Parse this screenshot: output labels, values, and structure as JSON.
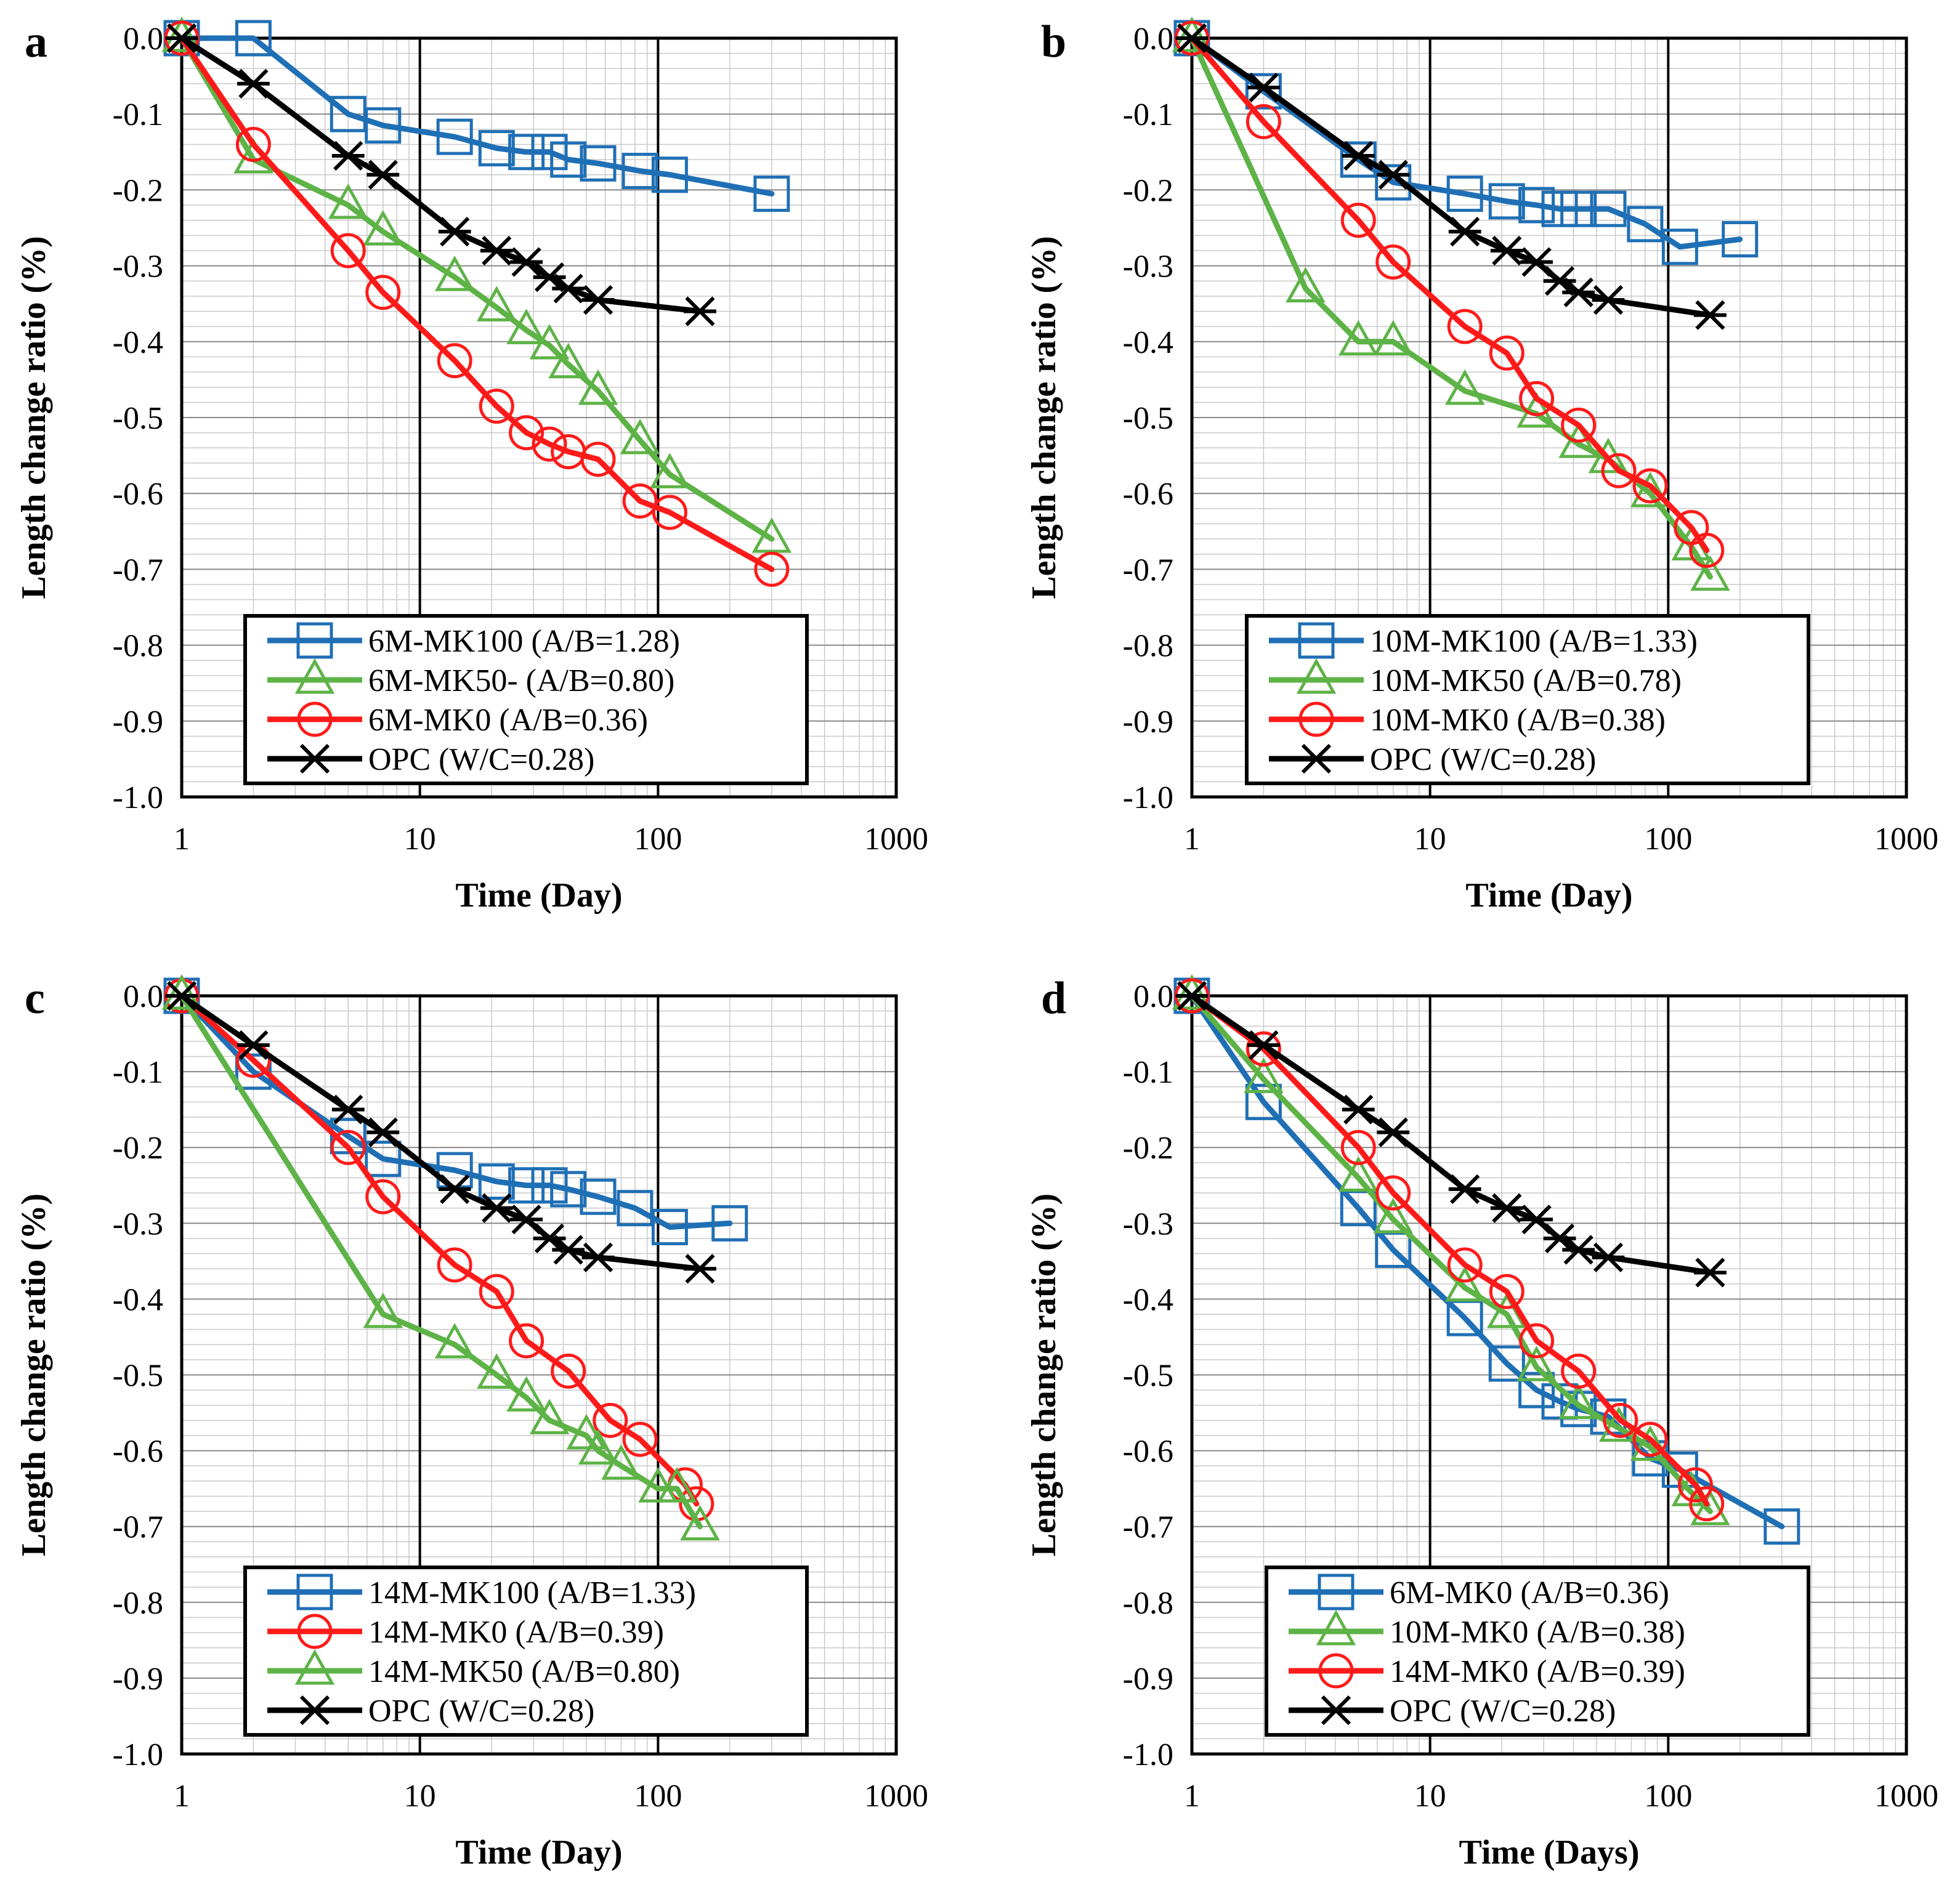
{
  "figure": {
    "colors": {
      "MK100": "#1f6fb5",
      "MK50": "#5db346",
      "MK0": "#ff1a1a",
      "OPC": "#000000"
    }
  },
  "chart_data": [
    {
      "panel": "a",
      "type": "line",
      "xlabel": "Time (Day)",
      "ylabel": "Length change ratio (%)",
      "xscale": "log",
      "xlim": [
        1,
        1000
      ],
      "ylim": [
        -1.0,
        0.0
      ],
      "xticks": [
        "1",
        "10",
        "100",
        "1000"
      ],
      "yticks": [
        "0.0",
        "-0.1",
        "-0.2",
        "-0.3",
        "-0.4",
        "-0.5",
        "-0.6",
        "-0.7",
        "-0.8",
        "-0.9",
        "-1.0"
      ],
      "legend_position": "bottom-center",
      "series": [
        {
          "name": "6M-MK100 (A/B=1.28)",
          "color": "#1f6fb5",
          "marker": "square",
          "x": [
            1,
            2,
            5,
            7,
            14,
            21,
            28,
            35,
            42,
            56,
            84,
            112,
            300
          ],
          "y": [
            0,
            0,
            -0.1,
            -0.115,
            -0.13,
            -0.145,
            -0.15,
            -0.15,
            -0.16,
            -0.165,
            -0.175,
            -0.18,
            -0.205
          ]
        },
        {
          "name": "6M-MK50- (A/B=0.80)",
          "color": "#5db346",
          "marker": "triangle",
          "x": [
            1,
            2,
            5,
            7,
            14,
            21,
            28,
            35,
            42,
            56,
            84,
            112,
            300
          ],
          "y": [
            0,
            -0.16,
            -0.22,
            -0.255,
            -0.315,
            -0.355,
            -0.385,
            -0.405,
            -0.43,
            -0.465,
            -0.53,
            -0.575,
            -0.66
          ]
        },
        {
          "name": "6M-MK0 (A/B=0.36)",
          "color": "#ff1a1a",
          "marker": "circle",
          "x": [
            1,
            2,
            5,
            7,
            14,
            21,
            28,
            35,
            42,
            56,
            84,
            112,
            300
          ],
          "y": [
            0,
            -0.14,
            -0.28,
            -0.335,
            -0.425,
            -0.485,
            -0.52,
            -0.535,
            -0.545,
            -0.555,
            -0.61,
            -0.625,
            -0.7
          ]
        },
        {
          "name": "OPC (W/C=0.28)",
          "color": "#000000",
          "marker": "star",
          "x": [
            1,
            2,
            5,
            7,
            14,
            21,
            28,
            35,
            42,
            56,
            150
          ],
          "y": [
            0,
            -0.06,
            -0.155,
            -0.18,
            -0.255,
            -0.28,
            -0.295,
            -0.315,
            -0.33,
            -0.345,
            -0.36
          ]
        }
      ]
    },
    {
      "panel": "b",
      "type": "line",
      "xlabel": "Time (Day)",
      "ylabel": "Length change ratio (%)",
      "xscale": "log",
      "xlim": [
        1,
        1000
      ],
      "ylim": [
        -1.0,
        0.0
      ],
      "xticks": [
        "1",
        "10",
        "100",
        "1000"
      ],
      "yticks": [
        "0.0",
        "-0.1",
        "-0.2",
        "-0.3",
        "-0.4",
        "-0.5",
        "-0.6",
        "-0.7",
        "-0.8",
        "-0.9",
        "-1.0"
      ],
      "legend_position": "bottom-center",
      "series": [
        {
          "name": "10M-MK100 (A/B=1.33)",
          "color": "#1f6fb5",
          "marker": "square",
          "x": [
            1,
            2,
            5,
            7,
            14,
            21,
            28,
            35,
            42,
            56,
            80,
            112,
            200
          ],
          "y": [
            0,
            -0.07,
            -0.16,
            -0.19,
            -0.205,
            -0.215,
            -0.22,
            -0.225,
            -0.225,
            -0.225,
            -0.245,
            -0.275,
            -0.265
          ]
        },
        {
          "name": "10M-MK50 (A/B=0.78)",
          "color": "#5db346",
          "marker": "triangle",
          "x": [
            1,
            3,
            5,
            7,
            14,
            28,
            42,
            56,
            84,
            125,
            150
          ],
          "y": [
            0,
            -0.33,
            -0.4,
            -0.4,
            -0.465,
            -0.495,
            -0.535,
            -0.555,
            -0.6,
            -0.67,
            -0.71
          ]
        },
        {
          "name": "10M-MK0 (A/B=0.38)",
          "color": "#ff1a1a",
          "marker": "circle",
          "x": [
            1,
            2,
            5,
            7,
            14,
            21,
            28,
            42,
            62,
            84,
            125,
            145
          ],
          "y": [
            0,
            -0.11,
            -0.24,
            -0.295,
            -0.38,
            -0.415,
            -0.475,
            -0.51,
            -0.57,
            -0.59,
            -0.645,
            -0.675
          ]
        },
        {
          "name": "OPC (W/C=0.28)",
          "color": "#000000",
          "marker": "star",
          "x": [
            1,
            2,
            5,
            7,
            14,
            21,
            28,
            35,
            42,
            56,
            150
          ],
          "y": [
            0,
            -0.065,
            -0.155,
            -0.18,
            -0.255,
            -0.28,
            -0.295,
            -0.32,
            -0.335,
            -0.345,
            -0.365
          ]
        }
      ]
    },
    {
      "panel": "c",
      "type": "line",
      "xlabel": "Time (Day)",
      "ylabel": "Length change ratio (%)",
      "xscale": "log",
      "xlim": [
        1,
        1000
      ],
      "ylim": [
        -1.0,
        0.0
      ],
      "xticks": [
        "1",
        "10",
        "100",
        "1000"
      ],
      "yticks": [
        "0.0",
        "-0.1",
        "-0.2",
        "-0.3",
        "-0.4",
        "-0.5",
        "-0.6",
        "-0.7",
        "-0.8",
        "-0.9",
        "-1.0"
      ],
      "legend_position": "bottom-center",
      "series": [
        {
          "name": "14M-MK100 (A/B=1.33)",
          "color": "#1f6fb5",
          "marker": "square",
          "x": [
            1,
            2,
            5,
            7,
            14,
            21,
            28,
            35,
            42,
            56,
            80,
            112,
            200
          ],
          "y": [
            0,
            -0.1,
            -0.185,
            -0.215,
            -0.23,
            -0.245,
            -0.25,
            -0.25,
            -0.255,
            -0.265,
            -0.28,
            -0.305,
            -0.3
          ]
        },
        {
          "name": "14M-MK0 (A/B=0.39)",
          "color": "#ff1a1a",
          "marker": "circle",
          "x": [
            1,
            2,
            5,
            7,
            14,
            21,
            28,
            42,
            63,
            84,
            130,
            145
          ],
          "y": [
            0,
            -0.085,
            -0.2,
            -0.265,
            -0.355,
            -0.39,
            -0.455,
            -0.495,
            -0.56,
            -0.585,
            -0.645,
            -0.67
          ]
        },
        {
          "name": "14M-MK50 (A/B=0.80)",
          "color": "#5db346",
          "marker": "triangle",
          "x": [
            1,
            7,
            14,
            21,
            28,
            35,
            50,
            56,
            70,
            100,
            120,
            150
          ],
          "y": [
            0,
            -0.42,
            -0.46,
            -0.5,
            -0.53,
            -0.56,
            -0.58,
            -0.6,
            -0.62,
            -0.65,
            -0.65,
            -0.7
          ]
        },
        {
          "name": "OPC (W/C=0.28)",
          "color": "#000000",
          "marker": "star",
          "x": [
            1,
            2,
            5,
            7,
            14,
            21,
            28,
            35,
            42,
            56,
            150
          ],
          "y": [
            0,
            -0.065,
            -0.15,
            -0.18,
            -0.255,
            -0.28,
            -0.295,
            -0.32,
            -0.335,
            -0.345,
            -0.36
          ]
        }
      ]
    },
    {
      "panel": "d",
      "type": "line",
      "xlabel": "Time (Days)",
      "ylabel": "Length change ratio (%)",
      "xscale": "log",
      "xlim": [
        1,
        1000
      ],
      "ylim": [
        -1.0,
        0.0
      ],
      "xticks": [
        "1",
        "10",
        "100",
        "1000"
      ],
      "yticks": [
        "0.0",
        "-0.1",
        "-0.2",
        "-0.3",
        "-0.4",
        "-0.5",
        "-0.6",
        "-0.7",
        "-0.8",
        "-0.9",
        "-1.0"
      ],
      "legend_position": "bottom-center",
      "series": [
        {
          "name": "6M-MK0 (A/B=0.36)",
          "color": "#1f6fb5",
          "marker": "square",
          "x": [
            1,
            2,
            5,
            7,
            14,
            21,
            28,
            35,
            42,
            56,
            84,
            112,
            300
          ],
          "y": [
            0,
            -0.14,
            -0.28,
            -0.335,
            -0.425,
            -0.485,
            -0.52,
            -0.535,
            -0.545,
            -0.555,
            -0.61,
            -0.625,
            -0.7
          ]
        },
        {
          "name": "10M-MK0 (A/B=0.38)",
          "color": "#5db346",
          "marker": "triangle",
          "x": [
            1,
            2,
            5,
            7,
            14,
            21,
            28,
            42,
            62,
            84,
            125,
            150
          ],
          "y": [
            0,
            -0.11,
            -0.24,
            -0.295,
            -0.385,
            -0.42,
            -0.49,
            -0.54,
            -0.57,
            -0.595,
            -0.655,
            -0.68
          ]
        },
        {
          "name": "14M-MK0 (A/B=0.39)",
          "color": "#ff1a1a",
          "marker": "circle",
          "x": [
            1,
            2,
            5,
            7,
            14,
            21,
            28,
            42,
            63,
            84,
            130,
            145
          ],
          "y": [
            0,
            -0.07,
            -0.2,
            -0.26,
            -0.355,
            -0.39,
            -0.455,
            -0.495,
            -0.56,
            -0.585,
            -0.645,
            -0.67
          ]
        },
        {
          "name": "OPC (W/C=0.28)",
          "color": "#000000",
          "marker": "star",
          "x": [
            1,
            2,
            5,
            7,
            14,
            21,
            28,
            35,
            42,
            56,
            150
          ],
          "y": [
            0,
            -0.065,
            -0.15,
            -0.18,
            -0.255,
            -0.28,
            -0.295,
            -0.32,
            -0.335,
            -0.345,
            -0.365
          ]
        }
      ]
    }
  ]
}
